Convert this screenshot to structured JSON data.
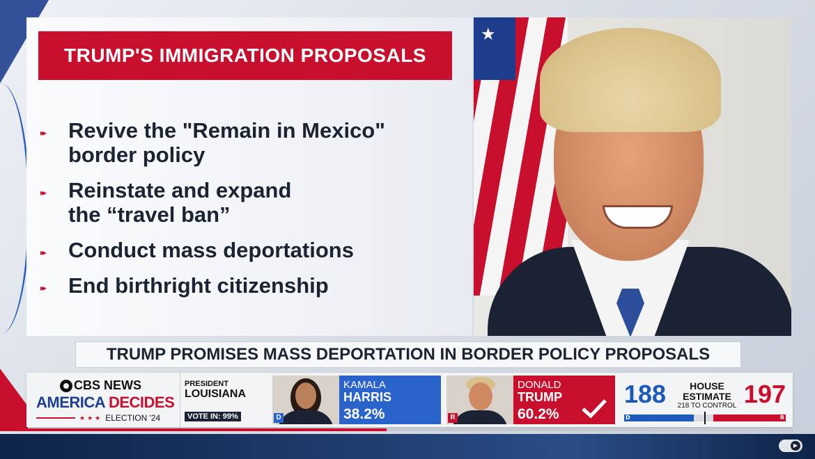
{
  "panel": {
    "title": "TRUMP'S IMMIGRATION PROPOSALS",
    "bullets": [
      {
        "lines": [
          "Revive the \"Remain in Mexico\"",
          "border policy"
        ]
      },
      {
        "lines": [
          "Reinstate and expand",
          "the “travel ban”"
        ]
      },
      {
        "lines": [
          "Conduct mass deportations"
        ]
      },
      {
        "lines": [
          "End birthright citizenship"
        ]
      }
    ],
    "bullet_icon": "▸▸"
  },
  "headline": "TRUMP PROMISES MASS DEPORTATION IN BORDER POLICY PROPOSALS",
  "ticker": {
    "brand": {
      "network": "CBS NEWS",
      "show_part1": "AMERICA ",
      "show_part2": "DECIDES",
      "election": "ELECTION '24"
    },
    "race": {
      "label": "PRESIDENT",
      "state": "LOUISIANA",
      "vote_in": "VOTE IN: 99%"
    },
    "candidates": [
      {
        "first": "KAMALA",
        "last": "HARRIS",
        "pct": "38.2%",
        "party": "D"
      },
      {
        "first": "DONALD",
        "last": "TRUMP",
        "pct": "60.2%",
        "party": "R",
        "winner": true
      }
    ],
    "house": {
      "dem": "188",
      "rep": "197",
      "title": "HOUSE ESTIMATE",
      "sub": "218 TO CONTROL",
      "dem_label": "D",
      "rep_label": "R",
      "dem_fraction": 0.43,
      "rep_fraction": 0.45
    }
  },
  "playback": {
    "progress_fraction": 0.47
  },
  "colors": {
    "red": "#c8102e",
    "blue": "#2a63c9",
    "navy": "#1c2433"
  }
}
